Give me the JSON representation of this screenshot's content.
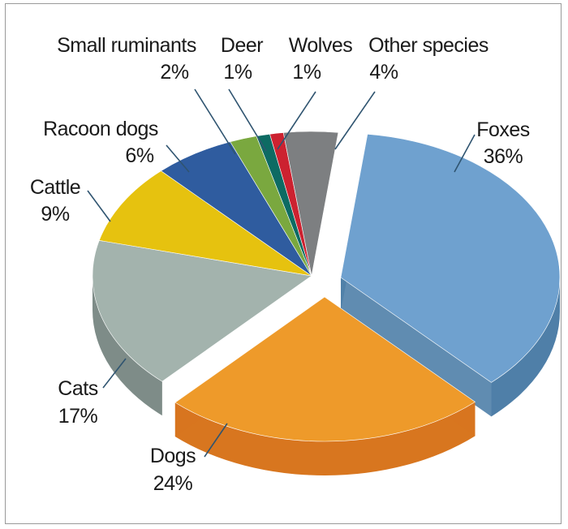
{
  "chart_data": {
    "type": "pie",
    "style": "3d-exploded",
    "title": "",
    "slices": [
      {
        "name": "Foxes",
        "value": 36,
        "label": "36%",
        "color": "#6fa1cf",
        "side_color": "#4f7fa8",
        "exploded": true
      },
      {
        "name": "Dogs",
        "value": 24,
        "label": "24%",
        "color": "#ee9a2a",
        "side_color": "#d8761f",
        "exploded": true
      },
      {
        "name": "Cats",
        "value": 17,
        "label": "17%",
        "color": "#a3b3ad",
        "side_color": "#7e8c88",
        "exploded": false
      },
      {
        "name": "Cattle",
        "value": 9,
        "label": "9%",
        "color": "#e6c20f",
        "side_color": "#b99a09",
        "exploded": false
      },
      {
        "name": "Racoon dogs",
        "value": 6,
        "label": "6%",
        "color": "#2f5c9f",
        "side_color": "#23467a",
        "exploded": false
      },
      {
        "name": "Small ruminants",
        "value": 2,
        "label": "2%",
        "color": "#7aa83f",
        "side_color": "#5c8230",
        "exploded": false
      },
      {
        "name": "Deer",
        "value": 1,
        "label": "1%",
        "color": "#0d6b63",
        "side_color": "#09514b",
        "exploded": false
      },
      {
        "name": "Wolves",
        "value": 1,
        "label": "1%",
        "color": "#cc2230",
        "side_color": "#9c1822",
        "exploded": false
      },
      {
        "name": "Other species",
        "value": 4,
        "label": "4%",
        "color": "#7d7f81",
        "side_color": "#5d5f61",
        "exploded": false
      }
    ]
  }
}
